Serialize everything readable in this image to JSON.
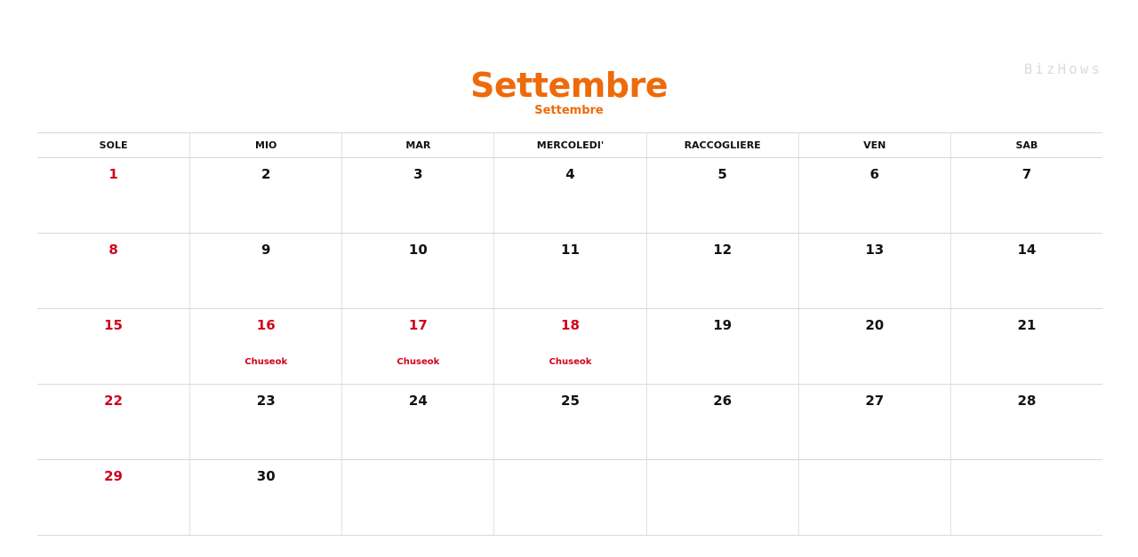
{
  "header": {
    "title": "Settembre",
    "subtitle": "Settembre",
    "logo": "BizHows"
  },
  "colors": {
    "accent": "#ee6a0a",
    "holiday": "#d0021b",
    "saturday": "#2d5fa8"
  },
  "weekdays": [
    "SOLE",
    "MIO",
    "MAR",
    "MERCOLEDI'",
    "RACCOGLIERE",
    "VEN",
    "SAB"
  ],
  "weeks": [
    [
      {
        "day": "1"
      },
      {
        "day": "2"
      },
      {
        "day": "3"
      },
      {
        "day": "4"
      },
      {
        "day": "5"
      },
      {
        "day": "6"
      },
      {
        "day": "7"
      }
    ],
    [
      {
        "day": "8"
      },
      {
        "day": "9"
      },
      {
        "day": "10"
      },
      {
        "day": "11"
      },
      {
        "day": "12"
      },
      {
        "day": "13"
      },
      {
        "day": "14"
      }
    ],
    [
      {
        "day": "15"
      },
      {
        "day": "16",
        "holiday": "Chuseok"
      },
      {
        "day": "17",
        "holiday": "Chuseok"
      },
      {
        "day": "18",
        "holiday": "Chuseok"
      },
      {
        "day": "19"
      },
      {
        "day": "20"
      },
      {
        "day": "21"
      }
    ],
    [
      {
        "day": "22"
      },
      {
        "day": "23"
      },
      {
        "day": "24"
      },
      {
        "day": "25"
      },
      {
        "day": "26"
      },
      {
        "day": "27"
      },
      {
        "day": "28"
      }
    ],
    [
      {
        "day": "29"
      },
      {
        "day": "30"
      },
      {
        "day": ""
      },
      {
        "day": ""
      },
      {
        "day": ""
      },
      {
        "day": ""
      },
      {
        "day": ""
      }
    ]
  ]
}
